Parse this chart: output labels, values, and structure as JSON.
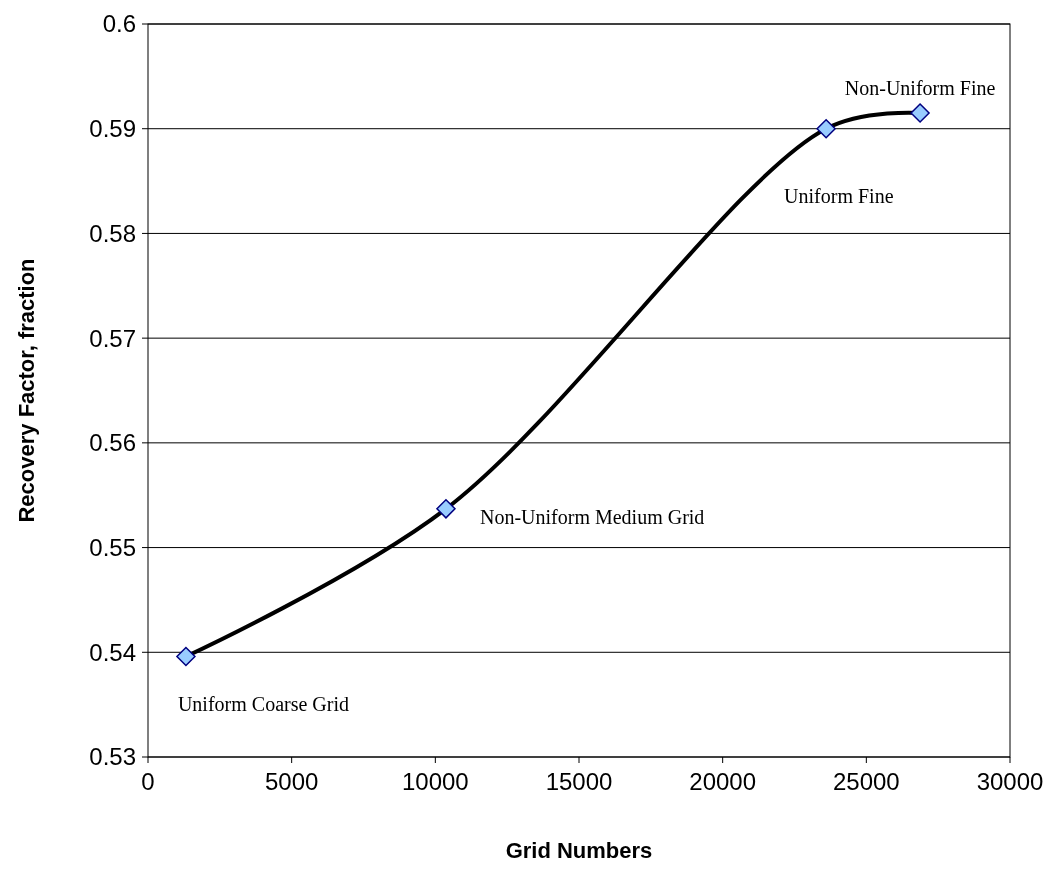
{
  "chart_data": {
    "type": "line",
    "xlabel": "Grid Numbers",
    "ylabel": "Recovery Factor, fraction",
    "x": [
      1320,
      10370,
      23600,
      26870
    ],
    "series": [
      {
        "color": "#000000",
        "values": [
          0.5396,
          0.5537,
          0.59,
          0.5915
        ]
      }
    ],
    "xlim": [
      0,
      30000
    ],
    "xticks": [
      0,
      5000,
      10000,
      15000,
      20000,
      25000,
      30000
    ],
    "ylim": [
      0.53,
      0.6
    ],
    "yticks": [
      0.53,
      0.54,
      0.55,
      0.56,
      0.57,
      0.58,
      0.59,
      0.6
    ],
    "grid": "y",
    "marker": "diamond",
    "line_style": "solid",
    "annotations": [
      {
        "text": "Uniform Coarse Grid",
        "x": 1320,
        "y": 0.5396
      },
      {
        "text": "Non-Uniform Medium Grid",
        "x": 10370,
        "y": 0.5537
      },
      {
        "text": "Uniform Fine",
        "x": 23600,
        "y": 0.59
      },
      {
        "text": "Non-Uniform Fine",
        "x": 26870,
        "y": 0.5915
      }
    ]
  }
}
